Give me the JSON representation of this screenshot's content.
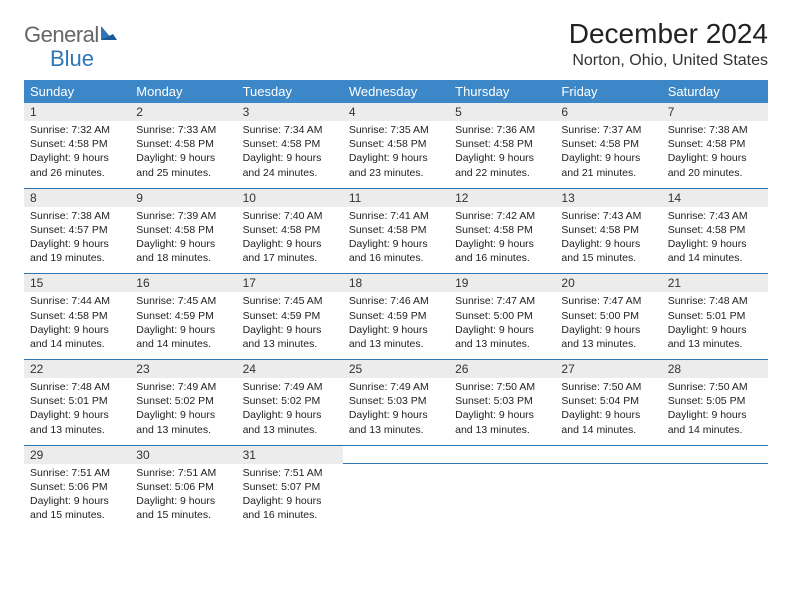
{
  "logo": {
    "general": "General",
    "blue": "Blue"
  },
  "header": {
    "title": "December 2024",
    "location": "Norton, Ohio, United States"
  },
  "colors": {
    "header_bg": "#3b87c8",
    "header_text": "#ffffff",
    "num_row_bg": "#ececec",
    "divider": "#2e76b5",
    "page_bg": "#ffffff",
    "logo_blue": "#2e76b5",
    "text": "#222222"
  },
  "daynames": [
    "Sunday",
    "Monday",
    "Tuesday",
    "Wednesday",
    "Thursday",
    "Friday",
    "Saturday"
  ],
  "weeks": [
    [
      {
        "num": "1",
        "sunrise": "Sunrise: 7:32 AM",
        "sunset": "Sunset: 4:58 PM",
        "day1": "Daylight: 9 hours",
        "day2": "and 26 minutes."
      },
      {
        "num": "2",
        "sunrise": "Sunrise: 7:33 AM",
        "sunset": "Sunset: 4:58 PM",
        "day1": "Daylight: 9 hours",
        "day2": "and 25 minutes."
      },
      {
        "num": "3",
        "sunrise": "Sunrise: 7:34 AM",
        "sunset": "Sunset: 4:58 PM",
        "day1": "Daylight: 9 hours",
        "day2": "and 24 minutes."
      },
      {
        "num": "4",
        "sunrise": "Sunrise: 7:35 AM",
        "sunset": "Sunset: 4:58 PM",
        "day1": "Daylight: 9 hours",
        "day2": "and 23 minutes."
      },
      {
        "num": "5",
        "sunrise": "Sunrise: 7:36 AM",
        "sunset": "Sunset: 4:58 PM",
        "day1": "Daylight: 9 hours",
        "day2": "and 22 minutes."
      },
      {
        "num": "6",
        "sunrise": "Sunrise: 7:37 AM",
        "sunset": "Sunset: 4:58 PM",
        "day1": "Daylight: 9 hours",
        "day2": "and 21 minutes."
      },
      {
        "num": "7",
        "sunrise": "Sunrise: 7:38 AM",
        "sunset": "Sunset: 4:58 PM",
        "day1": "Daylight: 9 hours",
        "day2": "and 20 minutes."
      }
    ],
    [
      {
        "num": "8",
        "sunrise": "Sunrise: 7:38 AM",
        "sunset": "Sunset: 4:57 PM",
        "day1": "Daylight: 9 hours",
        "day2": "and 19 minutes."
      },
      {
        "num": "9",
        "sunrise": "Sunrise: 7:39 AM",
        "sunset": "Sunset: 4:58 PM",
        "day1": "Daylight: 9 hours",
        "day2": "and 18 minutes."
      },
      {
        "num": "10",
        "sunrise": "Sunrise: 7:40 AM",
        "sunset": "Sunset: 4:58 PM",
        "day1": "Daylight: 9 hours",
        "day2": "and 17 minutes."
      },
      {
        "num": "11",
        "sunrise": "Sunrise: 7:41 AM",
        "sunset": "Sunset: 4:58 PM",
        "day1": "Daylight: 9 hours",
        "day2": "and 16 minutes."
      },
      {
        "num": "12",
        "sunrise": "Sunrise: 7:42 AM",
        "sunset": "Sunset: 4:58 PM",
        "day1": "Daylight: 9 hours",
        "day2": "and 16 minutes."
      },
      {
        "num": "13",
        "sunrise": "Sunrise: 7:43 AM",
        "sunset": "Sunset: 4:58 PM",
        "day1": "Daylight: 9 hours",
        "day2": "and 15 minutes."
      },
      {
        "num": "14",
        "sunrise": "Sunrise: 7:43 AM",
        "sunset": "Sunset: 4:58 PM",
        "day1": "Daylight: 9 hours",
        "day2": "and 14 minutes."
      }
    ],
    [
      {
        "num": "15",
        "sunrise": "Sunrise: 7:44 AM",
        "sunset": "Sunset: 4:58 PM",
        "day1": "Daylight: 9 hours",
        "day2": "and 14 minutes."
      },
      {
        "num": "16",
        "sunrise": "Sunrise: 7:45 AM",
        "sunset": "Sunset: 4:59 PM",
        "day1": "Daylight: 9 hours",
        "day2": "and 14 minutes."
      },
      {
        "num": "17",
        "sunrise": "Sunrise: 7:45 AM",
        "sunset": "Sunset: 4:59 PM",
        "day1": "Daylight: 9 hours",
        "day2": "and 13 minutes."
      },
      {
        "num": "18",
        "sunrise": "Sunrise: 7:46 AM",
        "sunset": "Sunset: 4:59 PM",
        "day1": "Daylight: 9 hours",
        "day2": "and 13 minutes."
      },
      {
        "num": "19",
        "sunrise": "Sunrise: 7:47 AM",
        "sunset": "Sunset: 5:00 PM",
        "day1": "Daylight: 9 hours",
        "day2": "and 13 minutes."
      },
      {
        "num": "20",
        "sunrise": "Sunrise: 7:47 AM",
        "sunset": "Sunset: 5:00 PM",
        "day1": "Daylight: 9 hours",
        "day2": "and 13 minutes."
      },
      {
        "num": "21",
        "sunrise": "Sunrise: 7:48 AM",
        "sunset": "Sunset: 5:01 PM",
        "day1": "Daylight: 9 hours",
        "day2": "and 13 minutes."
      }
    ],
    [
      {
        "num": "22",
        "sunrise": "Sunrise: 7:48 AM",
        "sunset": "Sunset: 5:01 PM",
        "day1": "Daylight: 9 hours",
        "day2": "and 13 minutes."
      },
      {
        "num": "23",
        "sunrise": "Sunrise: 7:49 AM",
        "sunset": "Sunset: 5:02 PM",
        "day1": "Daylight: 9 hours",
        "day2": "and 13 minutes."
      },
      {
        "num": "24",
        "sunrise": "Sunrise: 7:49 AM",
        "sunset": "Sunset: 5:02 PM",
        "day1": "Daylight: 9 hours",
        "day2": "and 13 minutes."
      },
      {
        "num": "25",
        "sunrise": "Sunrise: 7:49 AM",
        "sunset": "Sunset: 5:03 PM",
        "day1": "Daylight: 9 hours",
        "day2": "and 13 minutes."
      },
      {
        "num": "26",
        "sunrise": "Sunrise: 7:50 AM",
        "sunset": "Sunset: 5:03 PM",
        "day1": "Daylight: 9 hours",
        "day2": "and 13 minutes."
      },
      {
        "num": "27",
        "sunrise": "Sunrise: 7:50 AM",
        "sunset": "Sunset: 5:04 PM",
        "day1": "Daylight: 9 hours",
        "day2": "and 14 minutes."
      },
      {
        "num": "28",
        "sunrise": "Sunrise: 7:50 AM",
        "sunset": "Sunset: 5:05 PM",
        "day1": "Daylight: 9 hours",
        "day2": "and 14 minutes."
      }
    ],
    [
      {
        "num": "29",
        "sunrise": "Sunrise: 7:51 AM",
        "sunset": "Sunset: 5:06 PM",
        "day1": "Daylight: 9 hours",
        "day2": "and 15 minutes."
      },
      {
        "num": "30",
        "sunrise": "Sunrise: 7:51 AM",
        "sunset": "Sunset: 5:06 PM",
        "day1": "Daylight: 9 hours",
        "day2": "and 15 minutes."
      },
      {
        "num": "31",
        "sunrise": "Sunrise: 7:51 AM",
        "sunset": "Sunset: 5:07 PM",
        "day1": "Daylight: 9 hours",
        "day2": "and 16 minutes."
      },
      null,
      null,
      null,
      null
    ]
  ]
}
